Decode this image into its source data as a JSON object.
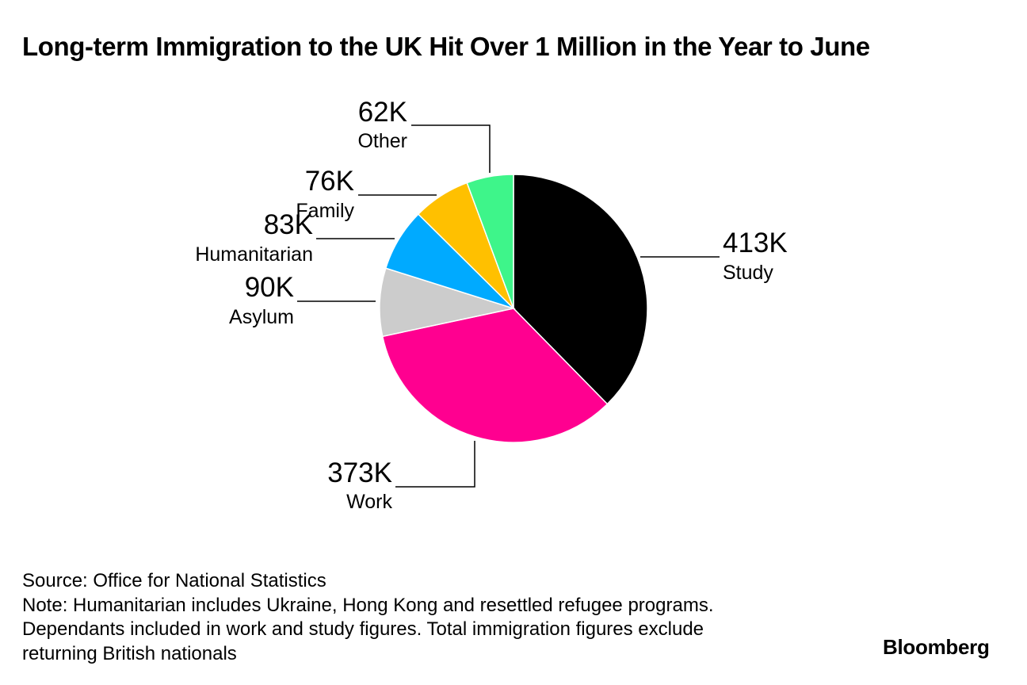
{
  "title": "Long-term Immigration to the UK Hit Over 1 Million in the Year to June",
  "chart_data": {
    "type": "pie",
    "title": "Long-term Immigration to the UK Hit Over 1 Million in the Year to June",
    "slices": [
      {
        "label": "Study",
        "value": 413,
        "value_label": "413K",
        "color": "#000000"
      },
      {
        "label": "Work",
        "value": 373,
        "value_label": "373K",
        "color": "#ff0090"
      },
      {
        "label": "Asylum",
        "value": 90,
        "value_label": "90K",
        "color": "#cccccc"
      },
      {
        "label": "Humanitarian",
        "value": 83,
        "value_label": "83K",
        "color": "#00aaff"
      },
      {
        "label": "Family",
        "value": 76,
        "value_label": "76K",
        "color": "#ffc000"
      },
      {
        "label": "Other",
        "value": 62,
        "value_label": "62K",
        "color": "#3ef58a"
      }
    ],
    "start_angle": "12 o'clock",
    "direction": "clockwise",
    "legend": "none"
  },
  "footer": {
    "source": "Source: Office for National Statistics",
    "note_line1": "Note: Humanitarian includes Ukraine, Hong Kong and resettled refugee programs.",
    "note_line2": "Dependants included in work and study figures. Total immigration figures exclude",
    "note_line3": "returning British nationals"
  },
  "brand": "Bloomberg"
}
